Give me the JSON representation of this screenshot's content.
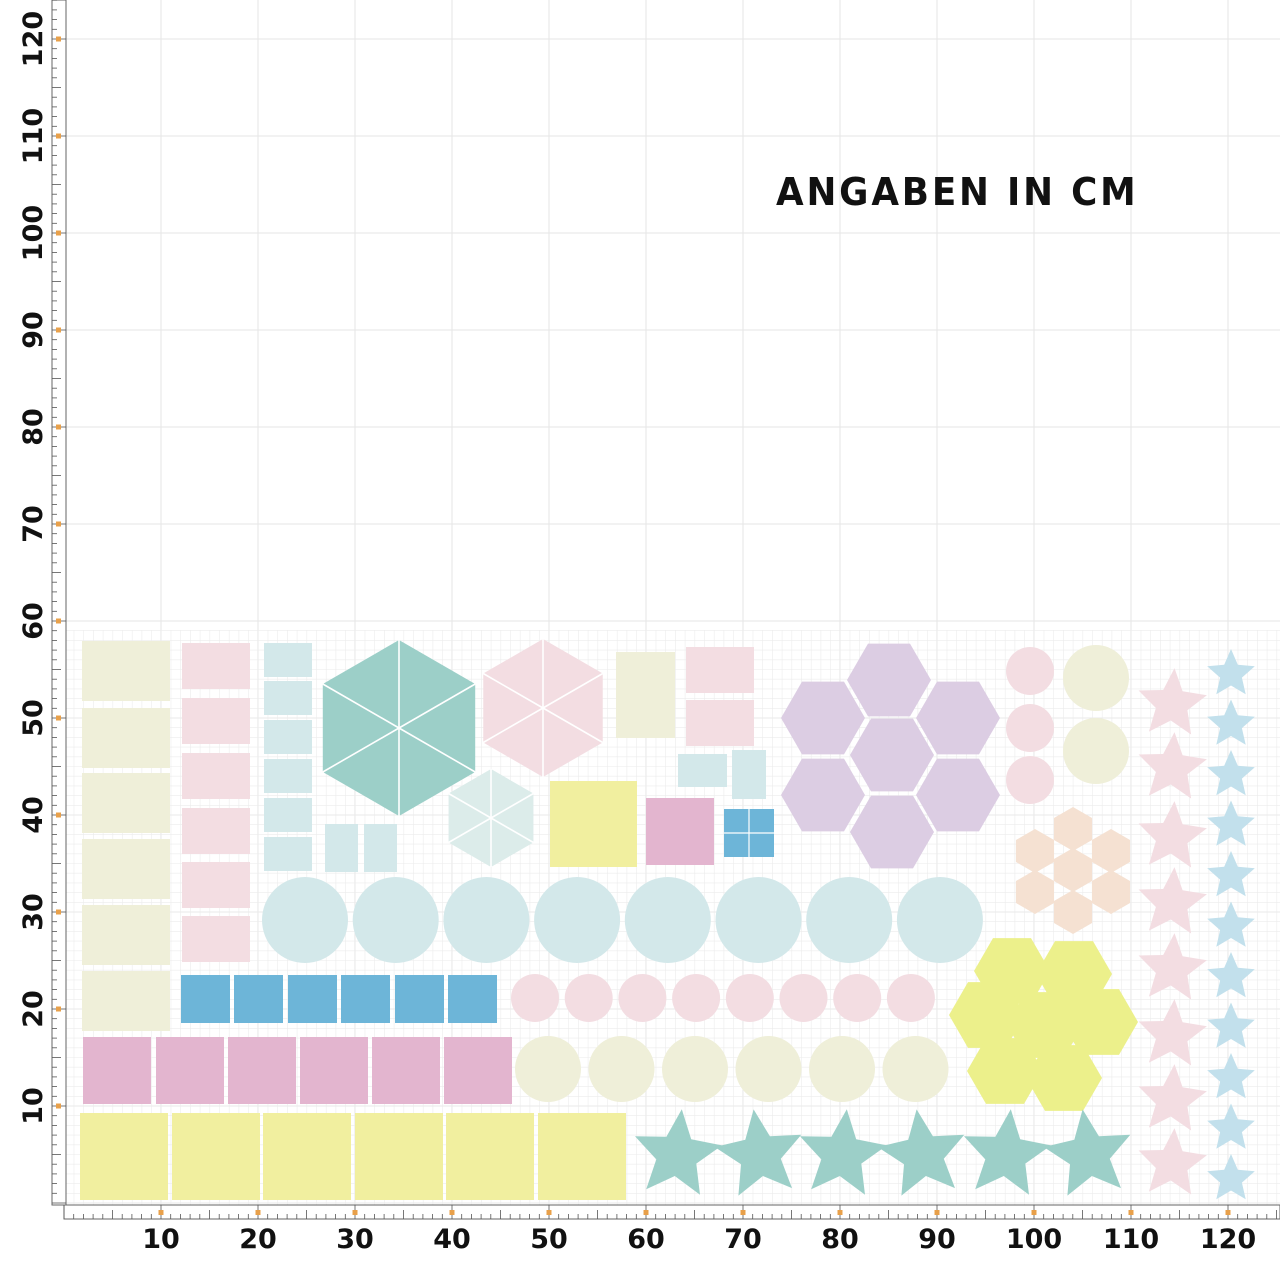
{
  "title": "ANGABEN IN CM",
  "units": "cm",
  "x_ruler": {
    "labels": [
      "10",
      "20",
      "30",
      "40",
      "50",
      "60",
      "70",
      "80",
      "90",
      "100",
      "110",
      "120"
    ]
  },
  "y_ruler": {
    "labels": [
      "10",
      "20",
      "30",
      "40",
      "50",
      "60",
      "70",
      "80",
      "90",
      "100",
      "110",
      "120"
    ]
  },
  "colors": {
    "cream": "#efefd9",
    "pink_light": "#f3dde2",
    "aqua_light": "#d3e8ea",
    "teal": "#9ccfc8",
    "blue": "#6db5d8",
    "magenta": "#e3b5cf",
    "yellow": "#f1ef9f",
    "lilac": "#dccde3",
    "peach": "#f5e1d2",
    "lime": "#ecf08b",
    "baby_blue": "#c2e0ec",
    "ruler_mark": "#e8a04a"
  }
}
